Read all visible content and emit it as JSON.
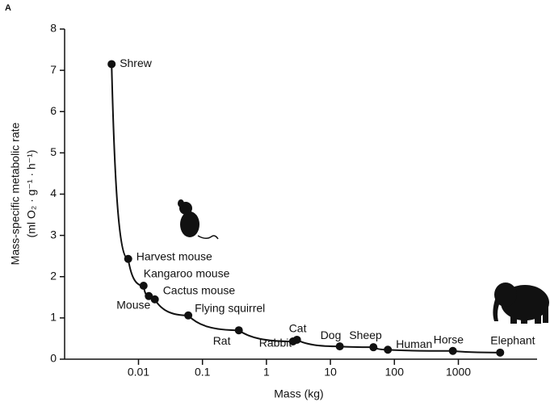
{
  "chart_data": {
    "type": "scatter",
    "panel_label": "A",
    "xlabel": "Mass (kg)",
    "ylabel": [
      "Mass-specific metabolic rate",
      "(ml O₂ · g⁻¹ · h⁻¹)"
    ],
    "log_x": true,
    "xlim": [
      0.0007,
      17000
    ],
    "xticks": [
      0.01,
      0.1,
      1,
      10,
      100,
      1000
    ],
    "ylim": [
      0,
      8
    ],
    "yticks": [
      0,
      1,
      2,
      3,
      4,
      5,
      6,
      7,
      8
    ],
    "color": "#111111",
    "labels": [
      "Shrew",
      "Harvest mouse",
      "Kangaroo mouse",
      "Mouse",
      "Cactus mouse",
      "Flying squirrel",
      "Rat",
      "Rabbit",
      "Cat",
      "Dog",
      "Sheep",
      "Human",
      "Horse",
      "Elephant"
    ],
    "x": [
      0.0038,
      0.0069,
      0.012,
      0.0145,
      0.018,
      0.06,
      0.37,
      2.6,
      3.0,
      14,
      47,
      79,
      820,
      4500
    ],
    "values": [
      7.15,
      2.43,
      1.78,
      1.53,
      1.45,
      1.06,
      0.7,
      0.43,
      0.47,
      0.31,
      0.29,
      0.23,
      0.2,
      0.16
    ]
  }
}
